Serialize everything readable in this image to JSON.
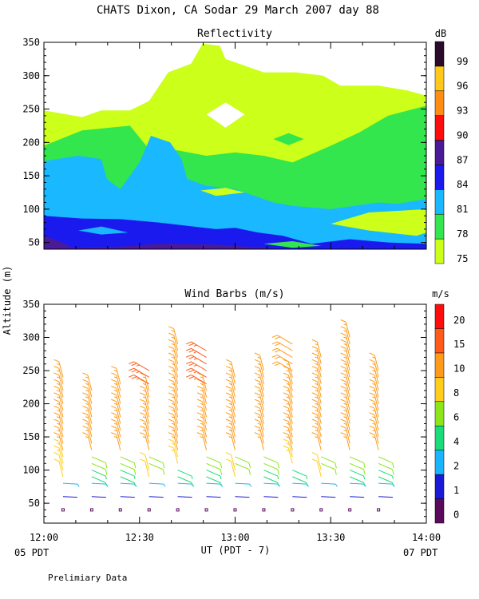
{
  "page": {
    "title": "CHATS Dixon, CA   Sodar   29 March 2007   day   88",
    "y_axis_label": "Altitude (m)",
    "x_axis_label": "UT  (PDT - 7)",
    "local_start": "05 PDT",
    "local_end": "07 PDT",
    "footer": "Prelimiary Data"
  },
  "chart_data": [
    {
      "type": "heatmap",
      "title": "Reflectivity",
      "x_ticks": [
        "12:00",
        "12:30",
        "13:00",
        "13:30",
        "14:00"
      ],
      "xlim_hours": [
        12.0,
        14.0
      ],
      "ylim": [
        40,
        350
      ],
      "y_ticks": [
        50,
        100,
        150,
        200,
        250,
        300,
        350
      ],
      "colorbar": {
        "unit": "dB",
        "levels": [
          75,
          78,
          81,
          84,
          87,
          90,
          93,
          96,
          99
        ],
        "colors": [
          "#ccff1a",
          "#33e64d",
          "#1ab8ff",
          "#1a1aee",
          "#4a1a99",
          "#ff0d0d",
          "#ff8c14",
          "#ffc81a",
          "#2b0a2b"
        ]
      },
      "contours": [
        {
          "level": 78,
          "color": "#33e64d",
          "points": [
            [
              12.0,
              195
            ],
            [
              12.2,
              218
            ],
            [
              12.45,
              225
            ],
            [
              12.55,
              190
            ],
            [
              12.7,
              188
            ],
            [
              12.85,
              180
            ],
            [
              13.0,
              185
            ],
            [
              13.15,
              180
            ],
            [
              13.3,
              170
            ],
            [
              13.5,
              195
            ],
            [
              13.65,
              215
            ],
            [
              13.8,
              240
            ],
            [
              14.0,
              255
            ],
            [
              14.0,
              40
            ],
            [
              12.0,
              40
            ]
          ]
        },
        {
          "level": 81,
          "color": "#1ab8ff",
          "points": [
            [
              12.0,
              172
            ],
            [
              12.18,
              180
            ],
            [
              12.3,
              175
            ],
            [
              12.33,
              145
            ],
            [
              12.4,
              130
            ],
            [
              12.5,
              170
            ],
            [
              12.56,
              210
            ],
            [
              12.66,
              200
            ],
            [
              12.72,
              175
            ],
            [
              12.75,
              145
            ],
            [
              12.85,
              135
            ],
            [
              13.0,
              130
            ],
            [
              13.2,
              110
            ],
            [
              13.3,
              105
            ],
            [
              13.5,
              100
            ],
            [
              13.75,
              110
            ],
            [
              13.85,
              108
            ],
            [
              14.0,
              115
            ],
            [
              14.0,
              40
            ],
            [
              12.0,
              40
            ]
          ]
        },
        {
          "level": 84,
          "color": "#1a1aee",
          "points": [
            [
              12.0,
              90
            ],
            [
              12.2,
              86
            ],
            [
              12.4,
              85
            ],
            [
              12.6,
              80
            ],
            [
              12.75,
              75
            ],
            [
              12.9,
              70
            ],
            [
              13.0,
              72
            ],
            [
              13.12,
              65
            ],
            [
              13.25,
              60
            ],
            [
              13.4,
              48
            ],
            [
              13.6,
              55
            ],
            [
              13.8,
              50
            ],
            [
              14.0,
              48
            ],
            [
              14.0,
              40
            ],
            [
              12.0,
              40
            ]
          ]
        },
        {
          "level": 87,
          "color": "#4a1a99",
          "points": [
            [
              12.0,
              60
            ],
            [
              12.08,
              52
            ],
            [
              12.15,
              42
            ],
            [
              12.4,
              44
            ],
            [
              12.6,
              48
            ],
            [
              12.9,
              47
            ],
            [
              13.1,
              43
            ],
            [
              13.25,
              40
            ],
            [
              12.0,
              40
            ]
          ]
        },
        {
          "level": 81,
          "color": "#1ab8ff",
          "points": [
            [
              12.18,
              68
            ],
            [
              12.3,
              74
            ],
            [
              12.44,
              65
            ],
            [
              12.3,
              62
            ]
          ]
        },
        {
          "level": 78,
          "color": "#33e64d",
          "points": [
            [
              13.15,
              48
            ],
            [
              13.3,
              52
            ],
            [
              13.45,
              45
            ],
            [
              13.3,
              42
            ]
          ]
        },
        {
          "level": 75,
          "color": "#ccff1a",
          "points": [
            [
              13.5,
              78
            ],
            [
              13.7,
              68
            ],
            [
              13.95,
              60
            ],
            [
              14.0,
              65
            ],
            [
              14.0,
              100
            ],
            [
              13.7,
              95
            ]
          ]
        },
        {
          "level": 75,
          "color": "#ccff1a",
          "points": [
            [
              12.82,
              128
            ],
            [
              12.9,
              120
            ],
            [
              13.05,
              125
            ],
            [
              12.95,
              132
            ]
          ]
        },
        {
          "level": 78,
          "color": "#33e64d",
          "points": [
            [
              13.2,
              205
            ],
            [
              13.28,
              214
            ],
            [
              13.36,
              205
            ],
            [
              13.28,
              196
            ]
          ]
        }
      ],
      "data_boundary": [
        [
          12.0,
          248
        ],
        [
          12.2,
          238
        ],
        [
          12.3,
          248
        ],
        [
          12.45,
          248
        ],
        [
          12.55,
          262
        ],
        [
          12.65,
          305
        ],
        [
          12.77,
          318
        ],
        [
          12.83,
          348
        ],
        [
          12.92,
          345
        ],
        [
          12.95,
          325
        ],
        [
          13.05,
          315
        ],
        [
          13.15,
          305
        ],
        [
          13.32,
          305
        ],
        [
          13.46,
          300
        ],
        [
          13.55,
          285
        ],
        [
          13.75,
          285
        ],
        [
          13.9,
          278
        ],
        [
          14.0,
          270
        ],
        [
          14.0,
          350
        ],
        [
          12.0,
          350
        ]
      ],
      "gaps": [
        [
          [
            12.95,
            260
          ],
          [
            12.85,
            242
          ],
          [
            12.95,
            222
          ],
          [
            13.05,
            242
          ]
        ]
      ]
    },
    {
      "type": "scatter",
      "title": "Wind Barbs (m/s)",
      "x_ticks": [
        "12:00",
        "12:30",
        "13:00",
        "13:30",
        "14:00"
      ],
      "xlim_hours": [
        12.0,
        14.0
      ],
      "ylim": [
        20,
        350
      ],
      "y_ticks": [
        50,
        100,
        150,
        200,
        250,
        300,
        350
      ],
      "colorbar": {
        "unit": "m/s",
        "labels": [
          "0",
          "1",
          "2",
          "4",
          "6",
          "8",
          "10",
          "15",
          "20"
        ],
        "colors": [
          "#5a0a5a",
          "#1a1ad8",
          "#1ab4ff",
          "#1adc78",
          "#8ce61a",
          "#ffcd1a",
          "#ff9b1a",
          "#ff5a1a",
          "#ff0d0d"
        ]
      },
      "columns_hours": [
        12.1,
        12.25,
        12.4,
        12.55,
        12.7,
        12.85,
        13.0,
        13.15,
        13.3,
        13.45,
        13.6,
        13.75
      ],
      "column_tops": [
        240,
        225,
        230,
        255,
        295,
        285,
        240,
        255,
        295,
        275,
        300,
        255
      ],
      "altitudes": [
        40,
        60,
        80,
        90,
        100,
        110,
        120,
        130,
        140,
        150,
        160,
        170,
        180,
        190,
        200,
        210,
        220,
        230,
        240,
        250,
        260,
        270,
        280,
        290,
        300
      ]
    }
  ]
}
